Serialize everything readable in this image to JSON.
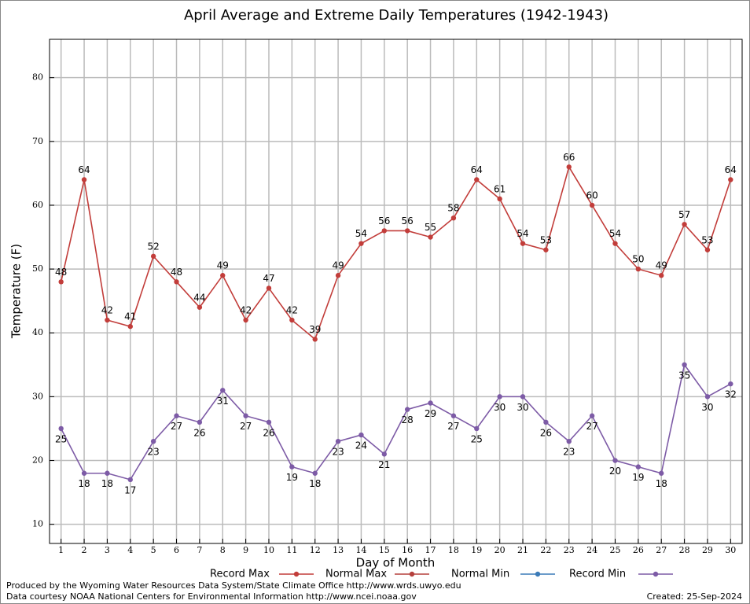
{
  "chart_data": {
    "type": "line",
    "title": "April Average and Extreme Daily Temperatures (1942-1943)",
    "xlabel": "Day of Month",
    "ylabel": "Temperature (F)",
    "x": [
      1,
      2,
      3,
      4,
      5,
      6,
      7,
      8,
      9,
      10,
      11,
      12,
      13,
      14,
      15,
      16,
      17,
      18,
      19,
      20,
      21,
      22,
      23,
      24,
      25,
      26,
      27,
      28,
      29,
      30
    ],
    "xlim": [
      0.5,
      30.5
    ],
    "xticks": [
      1,
      2,
      3,
      4,
      5,
      6,
      7,
      8,
      9,
      10,
      11,
      12,
      13,
      14,
      15,
      16,
      17,
      18,
      19,
      20,
      21,
      22,
      23,
      24,
      25,
      26,
      27,
      28,
      29,
      30
    ],
    "ylim": [
      7,
      86
    ],
    "yticks": [
      10,
      20,
      30,
      40,
      50,
      60,
      70,
      80
    ],
    "grid": true,
    "series": [
      {
        "name": "Record Max",
        "color": "#c23d3a",
        "values": [
          48,
          64,
          42,
          41,
          52,
          48,
          44,
          49,
          42,
          47,
          42,
          39,
          49,
          54,
          56,
          56,
          55,
          58,
          64,
          61,
          54,
          53,
          66,
          60,
          54,
          50,
          49,
          57,
          53,
          64
        ]
      },
      {
        "name": "Normal Max",
        "color": "#b5413d",
        "values": [
          null,
          null,
          null,
          null,
          null,
          null,
          null,
          null,
          null,
          null,
          null,
          null,
          null,
          null,
          null,
          null,
          null,
          null,
          null,
          null,
          null,
          null,
          null,
          null,
          null,
          null,
          null,
          null,
          null,
          null
        ]
      },
      {
        "name": "Normal Min",
        "color": "#3b7bb8",
        "values": [
          null,
          null,
          null,
          null,
          null,
          null,
          null,
          null,
          null,
          null,
          null,
          null,
          null,
          null,
          null,
          null,
          null,
          null,
          null,
          null,
          null,
          null,
          null,
          null,
          null,
          null,
          null,
          null,
          null,
          null
        ]
      },
      {
        "name": "Record Min",
        "color": "#7d5ba6",
        "values": [
          25,
          18,
          18,
          17,
          23,
          27,
          26,
          31,
          27,
          26,
          19,
          18,
          23,
          24,
          21,
          28,
          29,
          27,
          25,
          30,
          30,
          26,
          23,
          27,
          20,
          19,
          18,
          35,
          30,
          32
        ]
      }
    ],
    "footer": [
      "Produced by the Wyoming Water Resources Data System/State Climate Office http://www.wrds.uwyo.edu",
      "Data courtesy NOAA National Centers for Environmental Information http://www.ncei.noaa.gov"
    ],
    "created": "Created: 25-Sep-2024"
  }
}
